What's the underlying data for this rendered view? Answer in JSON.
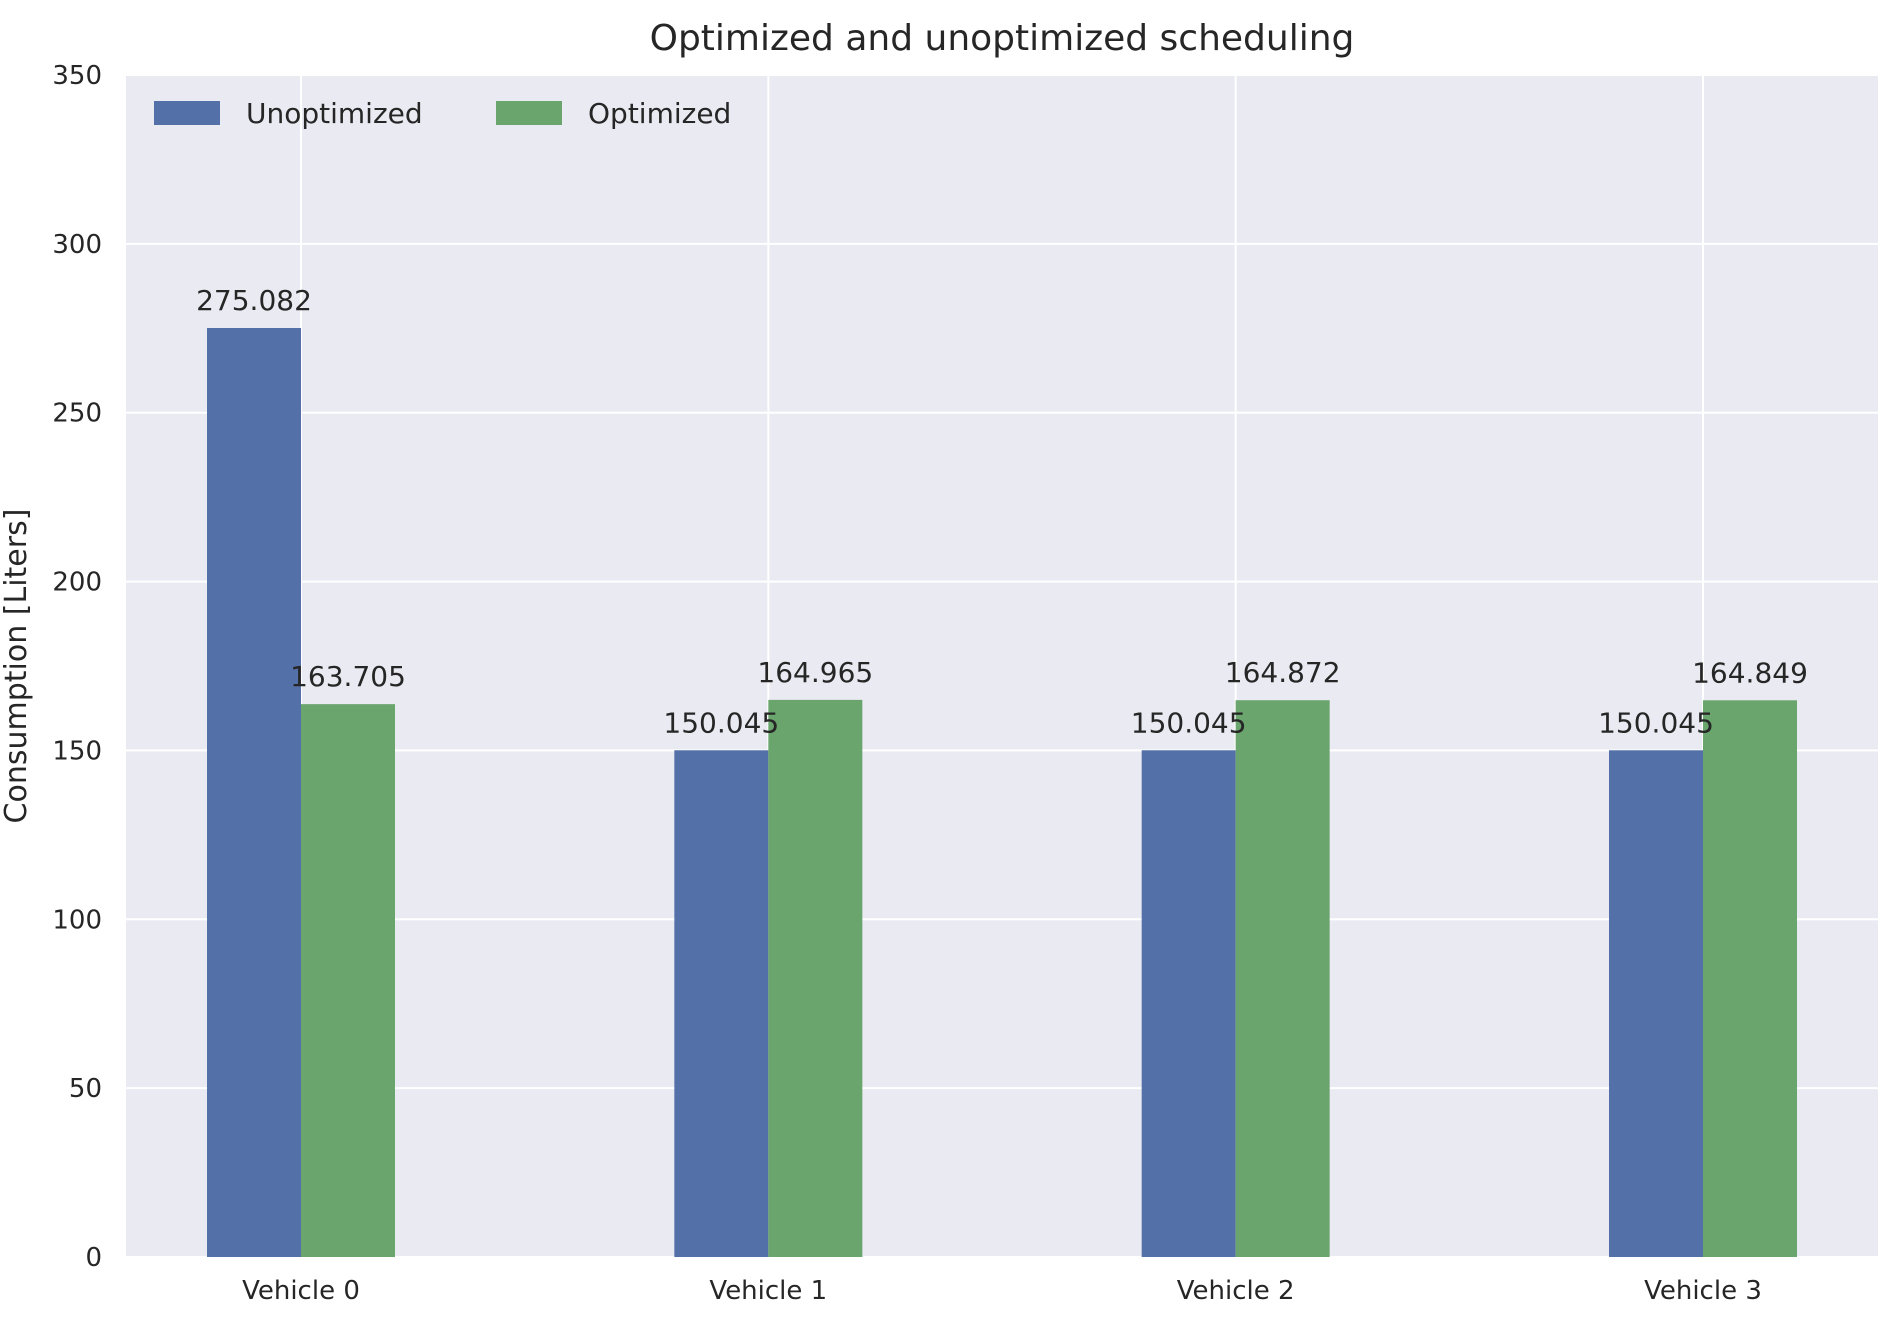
{
  "chart_data": {
    "type": "bar",
    "title": "Optimized and unoptimized scheduling",
    "xlabel": "",
    "ylabel": "Consumption [Liters]",
    "categories": [
      "Vehicle 0",
      "Vehicle 1",
      "Vehicle 2",
      "Vehicle 3"
    ],
    "series": [
      {
        "name": "Unoptimized",
        "color": "#5470a9",
        "values": [
          275.082,
          150.045,
          150.045,
          150.045
        ],
        "labels": [
          "275.082",
          "150.045",
          "150.045",
          "150.045"
        ]
      },
      {
        "name": "Optimized",
        "color": "#69a56d",
        "values": [
          163.705,
          164.965,
          164.872,
          164.849
        ],
        "labels": [
          "163.705",
          "164.965",
          "164.872",
          "164.849"
        ]
      }
    ],
    "ylim": [
      0,
      350
    ],
    "yticks": [
      0,
      50,
      100,
      150,
      200,
      250,
      300,
      350
    ],
    "yticklabels": [
      "0",
      "50",
      "100",
      "150",
      "200",
      "250",
      "300",
      "350"
    ],
    "grid": true,
    "legend_position": "top-left",
    "background_color": "#eaeaf2",
    "grid_color": "#ffffff"
  }
}
